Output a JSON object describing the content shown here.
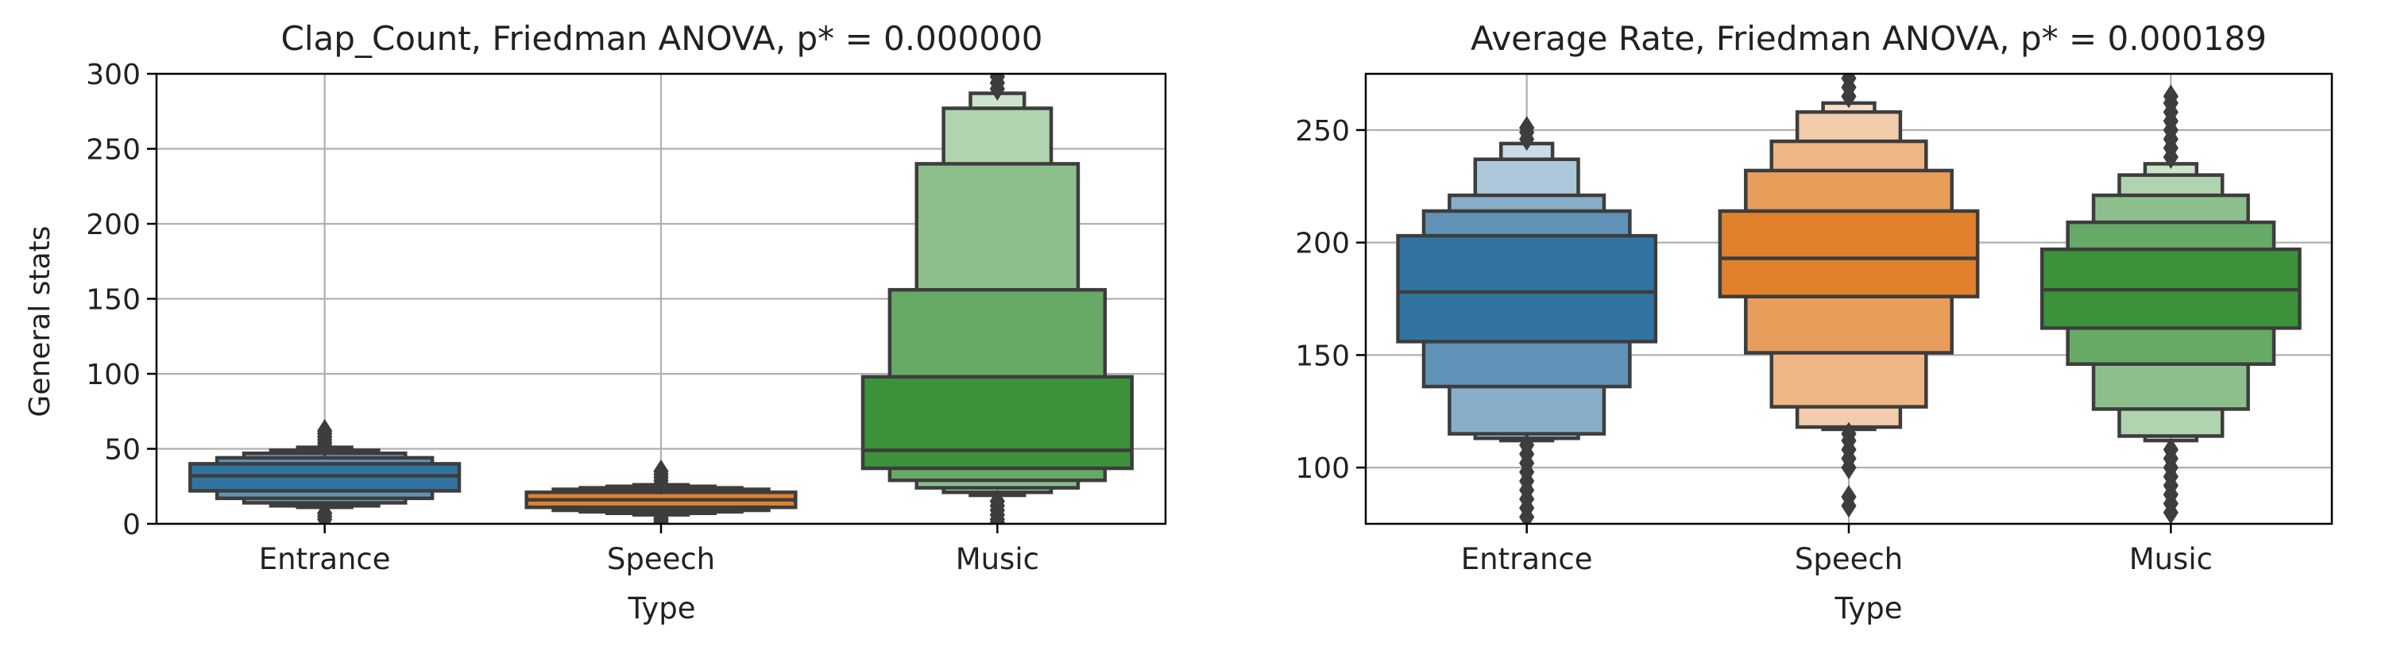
{
  "chart_data": [
    {
      "type": "boxen",
      "title": "Clap_Count, Friedman ANOVA, p* = 0.000000",
      "xlabel": "Type",
      "ylabel": "General stats",
      "categories": [
        "Entrance",
        "Speech",
        "Music"
      ],
      "ylim": [
        0,
        300
      ],
      "yticks": [
        0,
        50,
        100,
        150,
        200,
        250,
        300
      ],
      "grid": true,
      "colors": [
        "#1f77b4",
        "#ff7f0e",
        "#2ca02c"
      ],
      "boxes": [
        {
          "category": "Entrance",
          "median": 32,
          "levels": [
            [
              22,
              40
            ],
            [
              17,
              44
            ],
            [
              14,
              47
            ],
            [
              12,
              49
            ],
            [
              11,
              51
            ]
          ],
          "outliers": [
            3,
            5,
            7,
            52,
            54,
            56,
            58,
            60,
            62
          ]
        },
        {
          "category": "Speech",
          "median": 16,
          "levels": [
            [
              11,
              21
            ],
            [
              9,
              23
            ],
            [
              8,
              24
            ],
            [
              7,
              25
            ],
            [
              6,
              26
            ]
          ],
          "outliers": [
            1,
            2,
            3,
            4,
            27,
            29,
            31,
            33,
            35
          ]
        },
        {
          "category": "Music",
          "median": 49,
          "levels": [
            [
              37,
              98
            ],
            [
              29,
              156
            ],
            [
              24,
              240
            ],
            [
              21,
              277
            ],
            [
              19,
              287
            ]
          ],
          "outliers": [
            1,
            3,
            6,
            9,
            12,
            15,
            290,
            294,
            298,
            300
          ]
        }
      ]
    },
    {
      "type": "boxen",
      "title": "Average Rate, Friedman ANOVA, p* = 0.000189",
      "xlabel": "Type",
      "ylabel": "",
      "categories": [
        "Entrance",
        "Speech",
        "Music"
      ],
      "ylim": [
        75,
        275
      ],
      "yticks": [
        100,
        150,
        200,
        250
      ],
      "grid": true,
      "colors": [
        "#1f77b4",
        "#ff7f0e",
        "#2ca02c"
      ],
      "boxes": [
        {
          "category": "Entrance",
          "median": 178,
          "levels": [
            [
              156,
              203
            ],
            [
              136,
              214
            ],
            [
              115,
              221
            ],
            [
              113,
              237
            ],
            [
              112,
              244
            ]
          ],
          "outliers": [
            78,
            82,
            86,
            90,
            94,
            98,
            102,
            106,
            110,
            246,
            249,
            251
          ]
        },
        {
          "category": "Speech",
          "median": 193,
          "levels": [
            [
              176,
              214
            ],
            [
              151,
              232
            ],
            [
              127,
              245
            ],
            [
              118,
              258
            ],
            [
              117,
              262
            ]
          ],
          "outliers": [
            83,
            87,
            100,
            104,
            108,
            112,
            115,
            265,
            269,
            273
          ]
        },
        {
          "category": "Music",
          "median": 179,
          "levels": [
            [
              162,
              197
            ],
            [
              146,
              209
            ],
            [
              126,
              221
            ],
            [
              114,
              230
            ],
            [
              112,
              235
            ]
          ],
          "outliers": [
            80,
            84,
            88,
            92,
            96,
            100,
            104,
            108,
            238,
            242,
            246,
            250,
            254,
            258,
            262,
            265
          ]
        }
      ]
    }
  ]
}
